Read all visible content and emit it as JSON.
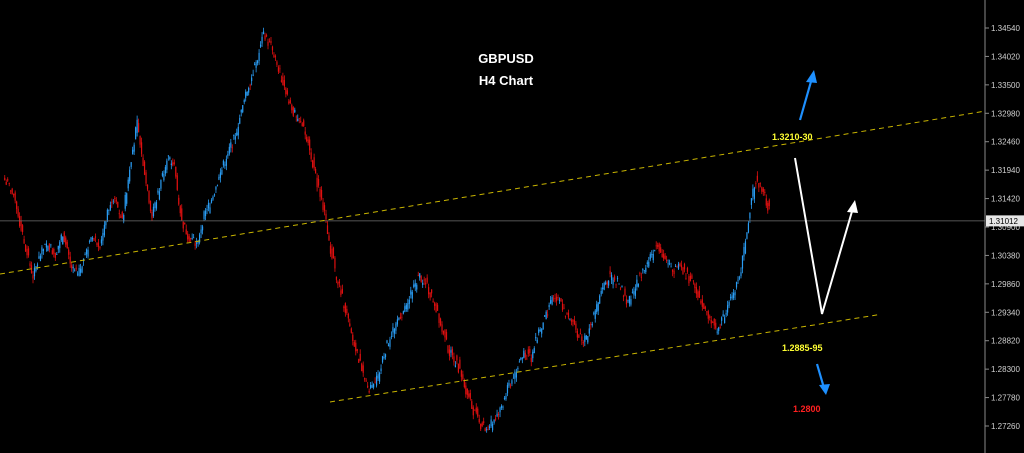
{
  "header": {
    "symbol": "GBPUSD",
    "timeframe": "H4 Chart"
  },
  "annotations": {
    "upper_level": "1.3210-30",
    "lower_level": "1.2885-95",
    "target_level": "1.2800"
  },
  "colors": {
    "background": "#000000",
    "bull_candle": "#2a9df4",
    "bear_candle": "#e01010",
    "channel_line": "#c8b400",
    "upper_text": "#ffff33",
    "lower_text": "#ffff33",
    "target_text": "#ff2020",
    "arrow_blue": "#1e90ff",
    "arrow_white": "#ffffff",
    "axis_text": "#d0d0d0"
  },
  "chart_data": {
    "type": "candlestick",
    "instrument": "GBPUSD",
    "current_price": "1.31012",
    "ylim": [
      1.2674,
      1.3506
    ],
    "y_ticks": [
      "1.34540",
      "1.34020",
      "1.33500",
      "1.32980",
      "1.32460",
      "1.31940",
      "1.31420",
      "1.30900",
      "1.30380",
      "1.29860",
      "1.29340",
      "1.28820",
      "1.28300",
      "1.27780",
      "1.27260"
    ],
    "closes": [
      1.316,
      1.311,
      1.305,
      1.3,
      1.304,
      1.306,
      1.304,
      1.308,
      1.302,
      1.3,
      1.304,
      1.307,
      1.306,
      1.312,
      1.314,
      1.31,
      1.32,
      1.328,
      1.319,
      1.311,
      1.316,
      1.322,
      1.32,
      1.31,
      1.307,
      1.306,
      1.311,
      1.314,
      1.318,
      1.322,
      1.325,
      1.33,
      1.335,
      1.339,
      1.344,
      1.342,
      1.338,
      1.334,
      1.33,
      1.328,
      1.325,
      1.318,
      1.313,
      1.305,
      1.299,
      1.294,
      1.288,
      1.284,
      1.279,
      1.28,
      1.285,
      1.289,
      1.292,
      1.294,
      1.298,
      1.3,
      1.298,
      1.295,
      1.29,
      1.286,
      1.284,
      1.28,
      1.276,
      1.273,
      1.272,
      1.274,
      1.276,
      1.28,
      1.283,
      1.286,
      1.285,
      1.29,
      1.293,
      1.296,
      1.295,
      1.292,
      1.29,
      1.288,
      1.291,
      1.295,
      1.299,
      1.3,
      1.298,
      1.295,
      1.298,
      1.301,
      1.304,
      1.306,
      1.303,
      1.301,
      1.302,
      1.3,
      1.298,
      1.295,
      1.292,
      1.29,
      1.293,
      1.296,
      1.3,
      1.308,
      1.317,
      1.316,
      1.312
    ],
    "lines": {
      "upper_channel": [
        [
          1.3004,
          1.3302
        ]
      ],
      "lower_channel": [
        [
          1.277,
          1.293
        ]
      ]
    },
    "levels": [
      "1.3210-30",
      "1.2885-95",
      "1.2800"
    ]
  }
}
